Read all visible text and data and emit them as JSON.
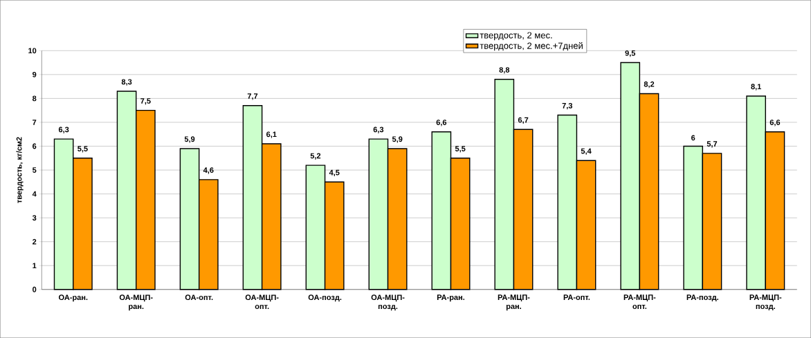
{
  "chart_data": {
    "type": "bar",
    "ylabel": "твердость, кг/см2",
    "categories": [
      "ОА-ран.",
      "ОА-МЦП-ран.",
      "ОА-опт.",
      "ОА-МЦП-опт.",
      "ОА-позд.",
      "ОА-МЦП-позд.",
      "РА-ран.",
      "РА-МЦП-ран.",
      "РА-опт.",
      "РА-МЦП-опт.",
      "РА-позд.",
      "РА-МЦП-позд."
    ],
    "series": [
      {
        "name": "твердость, 2 мес.",
        "color": "#ccffcc",
        "values": [
          6.3,
          8.3,
          5.9,
          7.7,
          5.2,
          6.3,
          6.6,
          8.8,
          7.3,
          9.5,
          6.0,
          8.1
        ],
        "value_labels": [
          "6,3",
          "8,3",
          "5,9",
          "7,7",
          "5,2",
          "6,3",
          "6,6",
          "8,8",
          "7,3",
          "9,5",
          "6",
          "8,1"
        ]
      },
      {
        "name": "твердость, 2 мес.+7дней",
        "color": "#ff9900",
        "values": [
          5.5,
          7.5,
          4.6,
          6.1,
          4.5,
          5.9,
          5.5,
          6.7,
          5.4,
          8.2,
          5.7,
          6.6
        ],
        "value_labels": [
          "5,5",
          "7,5",
          "4,6",
          "6,1",
          "4,5",
          "5,9",
          "5,5",
          "6,7",
          "5,4",
          "8,2",
          "5,7",
          "6,6"
        ]
      }
    ],
    "ylim": [
      0,
      10
    ],
    "yticks": [
      0,
      1,
      2,
      3,
      4,
      5,
      6,
      7,
      8,
      9,
      10
    ],
    "grid": "y",
    "legend": "top"
  }
}
